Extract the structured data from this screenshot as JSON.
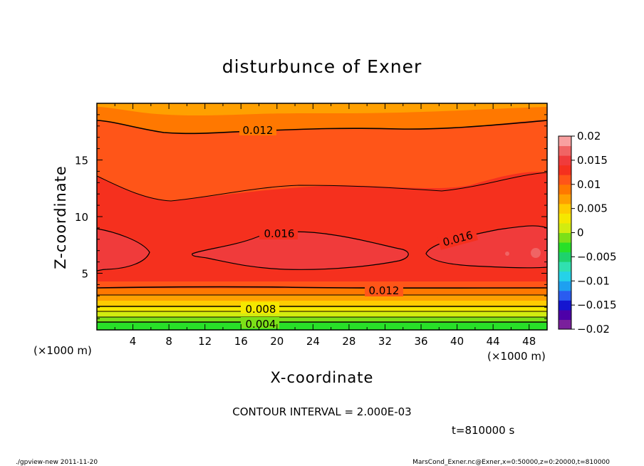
{
  "chart_data": {
    "type": "heatmap",
    "title": "disturbunce of Exner",
    "xlabel": "X-coordinate",
    "ylabel": "Z-coordinate",
    "x_unit": "(×1000 m)",
    "y_unit": "(×1000 m)",
    "xlim": [
      0,
      50
    ],
    "ylim": [
      0,
      20
    ],
    "x_ticks": [
      "4",
      "8",
      "12",
      "16",
      "20",
      "24",
      "28",
      "32",
      "36",
      "40",
      "44",
      "48"
    ],
    "y_ticks": [
      "5",
      "10",
      "15"
    ],
    "colorbar": {
      "range": [
        -0.02,
        0.02
      ],
      "ticks": [
        "0.02",
        "0.015",
        "0.01",
        "0.005",
        "0",
        "−0.005",
        "−0.01",
        "−0.015",
        "−0.02"
      ],
      "colors": [
        "#7a1f9c",
        "#4d00a8",
        "#1515d0",
        "#2a5cf0",
        "#1ea0f0",
        "#25d2e8",
        "#30e0b0",
        "#1ed26c",
        "#28e028",
        "#7ce018",
        "#d2ec10",
        "#f5e800",
        "#ffcc00",
        "#ffa000",
        "#ff7800",
        "#ff5518",
        "#f5301e",
        "#f03b3b",
        "#f06464",
        "#f8a0a0"
      ]
    },
    "contour_labels": [
      "0.012",
      "0.016",
      "0.016",
      "0.012",
      "0.008",
      "0.004"
    ],
    "contour_interval": "CONTOUR INTERVAL = 2.000E-03",
    "time": "t=810000 s",
    "vertical_profile": [
      {
        "z": 0.3,
        "value": 0.001
      },
      {
        "z": 0.8,
        "value": 0.003
      },
      {
        "z": 1.3,
        "value": 0.005
      },
      {
        "z": 1.8,
        "value": 0.007
      },
      {
        "z": 2.3,
        "value": 0.009
      },
      {
        "z": 2.8,
        "value": 0.01
      },
      {
        "z": 3.3,
        "value": 0.012
      },
      {
        "z": 4.0,
        "value": 0.0135
      },
      {
        "z": 7.0,
        "value": 0.0155
      },
      {
        "z": 10.0,
        "value": 0.0145
      },
      {
        "z": 13.0,
        "value": 0.0133
      },
      {
        "z": 16.0,
        "value": 0.0125
      },
      {
        "z": 19.0,
        "value": 0.0113
      }
    ]
  },
  "footer": {
    "left": "./gpview-new   2011-11-20",
    "right": "MarsCond_Exner.nc@Exner,x=0:50000,z=0:20000,t=810000"
  }
}
